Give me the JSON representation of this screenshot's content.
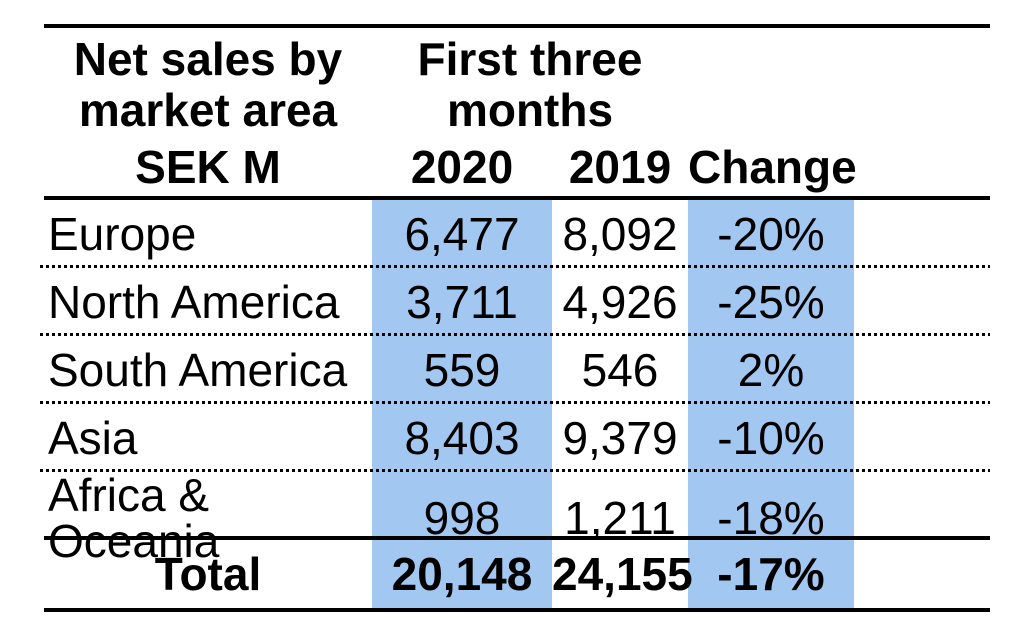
{
  "colors": {
    "highlight_blue": "#A2C8F2",
    "text": "#000000",
    "rule": "#000000"
  },
  "header": {
    "title_line1": "Net sales by",
    "title_line2": "market area",
    "period_line1": "First three",
    "period_line2": "months",
    "unit": "SEK M",
    "col_2020": "2020",
    "col_2019": "2019",
    "col_change": "Change"
  },
  "chart_data": {
    "type": "table",
    "title": "Net sales by market area",
    "unit": "SEK M",
    "period": "First three months",
    "columns": [
      "2020",
      "2019",
      "Change"
    ],
    "highlighted_columns": [
      "2020",
      "Change"
    ],
    "rows": [
      {
        "label": "Europe",
        "v2020": "6,477",
        "v2019": "8,092",
        "change": "-20%"
      },
      {
        "label": "North America",
        "v2020": "3,711",
        "v2019": "4,926",
        "change": "-25%"
      },
      {
        "label": "South America",
        "v2020": "559",
        "v2019": "546",
        "change": "2%"
      },
      {
        "label": "Asia",
        "v2020": "8,403",
        "v2019": "9,379",
        "change": "-10%"
      },
      {
        "label": "Africa & Oceania",
        "v2020": "998",
        "v2019": "1,211",
        "change": "-18%"
      }
    ],
    "total": {
      "label": "Total",
      "v2020": "20,148",
      "v2019": "24,155",
      "change": "-17%"
    }
  }
}
